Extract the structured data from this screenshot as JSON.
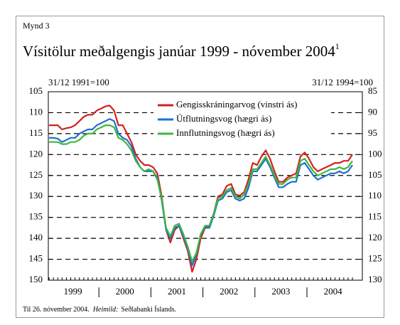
{
  "chart_data": {
    "type": "line",
    "label": "Mynd 3",
    "title": "Vísitölur meðalgengis janúar 1999 - nóvember 2004",
    "title_note": "1",
    "ylabel": "31/12 1991=100",
    "y2label": "31/12 1994=100",
    "footnote": "Til 26. nóvember 2004.",
    "source_label": "Heimild:",
    "source": "Seðlabanki Íslands.",
    "legend": "top",
    "grid": true,
    "y_inverted": true,
    "ylim": [
      105,
      150
    ],
    "yticks": [
      105,
      110,
      115,
      120,
      125,
      130,
      135,
      140,
      145,
      150
    ],
    "y2lim": [
      85,
      130
    ],
    "y2ticks": [
      85,
      90,
      95,
      100,
      105,
      110,
      115,
      120,
      125,
      130
    ],
    "categories": [
      null,
      null,
      null,
      null,
      null,
      "1999",
      null,
      null,
      null,
      null,
      null,
      null,
      null,
      null,
      null,
      null,
      null,
      "2000",
      null,
      null,
      null,
      null,
      null,
      null,
      null,
      null,
      null,
      null,
      null,
      "2001",
      null,
      null,
      null,
      null,
      null,
      null,
      null,
      null,
      null,
      null,
      null,
      "2002",
      null,
      null,
      null,
      null,
      null,
      null,
      null,
      null,
      null,
      null,
      null,
      "2003",
      null,
      null,
      null,
      null,
      null,
      null,
      null,
      null,
      null,
      null,
      null,
      "2004",
      null,
      null,
      null,
      null,
      null
    ],
    "series": [
      {
        "name": "Gengisskráningarvog (vinstri ás)",
        "color": "#d42020",
        "axis": "y",
        "values": [
          113,
          113,
          113,
          114,
          113.7,
          113.5,
          113,
          112,
          111,
          110.5,
          110.5,
          109.5,
          109,
          108.5,
          108.3,
          109.5,
          113,
          113,
          115,
          117,
          120,
          121.5,
          122.5,
          122.5,
          123,
          124.5,
          130,
          138,
          141,
          138,
          137,
          140,
          143,
          148,
          145,
          140,
          137.5,
          137,
          134,
          130,
          129.5,
          127.5,
          127,
          129.5,
          129.8,
          129,
          126,
          122,
          122.5,
          120.5,
          119,
          121,
          124,
          126.5,
          126.5,
          125.5,
          125,
          124.5,
          120.5,
          119.5,
          121,
          123,
          124,
          123.5,
          123,
          122.5,
          122,
          122,
          121.5,
          121.5,
          120
        ]
      },
      {
        "name": "Útflutningsvog (hægri ás)",
        "color": "#1f6fd0",
        "axis": "y2",
        "values": [
          96,
          96,
          96.2,
          97,
          96.5,
          96,
          96,
          95,
          94.5,
          94,
          94,
          93,
          92.5,
          92,
          91.5,
          92,
          95,
          96,
          96.5,
          98,
          101,
          103,
          104,
          104,
          104,
          105.5,
          111,
          118,
          120,
          117.5,
          117,
          119.5,
          122.5,
          126.5,
          124,
          119,
          117.5,
          117.5,
          114.5,
          111,
          110.5,
          109,
          108.5,
          110.5,
          111,
          110.5,
          108,
          104,
          104,
          102.5,
          101,
          103,
          105.5,
          107.8,
          107.8,
          107,
          106.5,
          106.5,
          102.5,
          102,
          103.5,
          105,
          106,
          105.5,
          105,
          104.5,
          104.5,
          104,
          104.5,
          104,
          102.5
        ]
      },
      {
        "name": "Innflutningsvog (hægri ás)",
        "color": "#3cb83c",
        "axis": "y2",
        "values": [
          97,
          97,
          97,
          97.5,
          97.5,
          97,
          97,
          96.5,
          95.5,
          95,
          95,
          94,
          93.5,
          93,
          93,
          93.5,
          96,
          96.5,
          97.5,
          99,
          101.5,
          103,
          104,
          103.5,
          104,
          106,
          110.5,
          117.5,
          119.5,
          117,
          116.5,
          119,
          122,
          125.5,
          123.5,
          119,
          117,
          117,
          114,
          110.5,
          110,
          108.5,
          108,
          110,
          110.5,
          109.5,
          107,
          103.5,
          103.5,
          102,
          100.5,
          102.5,
          105,
          107,
          107,
          106,
          105.5,
          105.5,
          101.5,
          101,
          102.5,
          104,
          105,
          104.5,
          104,
          103.5,
          103.5,
          103,
          103.5,
          103,
          101.5
        ]
      }
    ]
  }
}
